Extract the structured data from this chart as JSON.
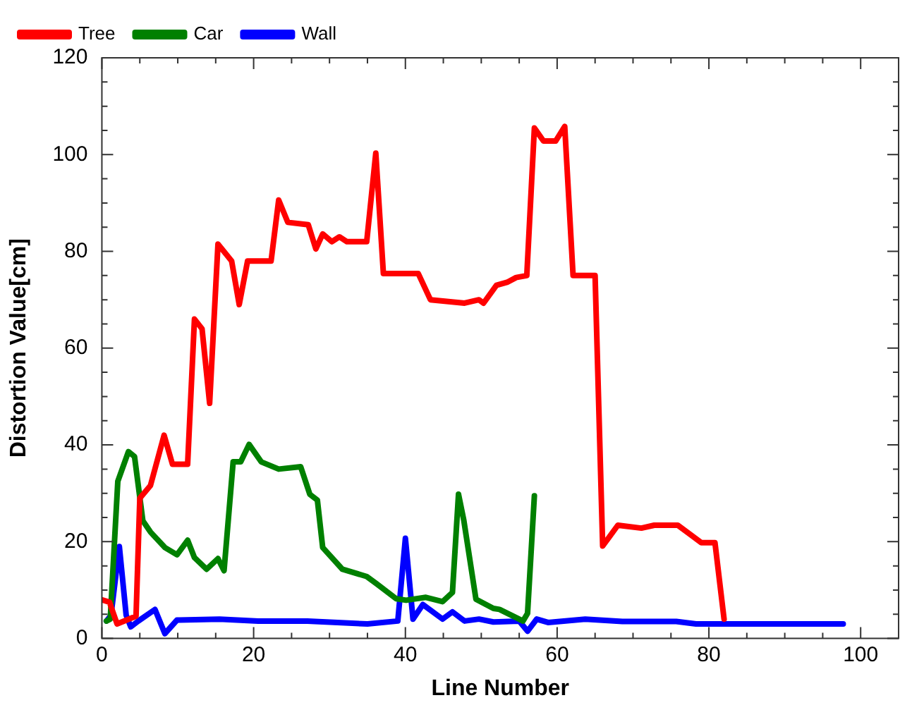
{
  "chart_data": {
    "type": "line",
    "xlabel": "Line Number",
    "ylabel": "Distortion Value[cm]",
    "xlim": [
      0,
      105
    ],
    "ylim": [
      0,
      120
    ],
    "xticks": [
      0,
      {
        "value": 5,
        "label": null
      },
      20,
      {
        "value": 10,
        "label": null
      },
      {
        "value": 15,
        "label": null
      },
      {
        "value": 25,
        "label": null
      },
      {
        "value": 30,
        "label": null
      },
      {
        "value": 35,
        "label": null
      },
      40,
      {
        "value": 45,
        "label": null
      },
      {
        "value": 50,
        "label": null
      },
      {
        "value": 55,
        "label": null
      },
      60,
      {
        "value": 65,
        "label": null
      },
      {
        "value": 70,
        "label": null
      },
      {
        "value": 75,
        "label": null
      },
      80,
      {
        "value": 85,
        "label": null
      },
      {
        "value": 90,
        "label": null
      },
      {
        "value": 95,
        "label": null
      },
      100
    ],
    "yticks": [
      0,
      {
        "value": 5,
        "label": null
      },
      {
        "value": 10,
        "label": null
      },
      {
        "value": 15,
        "label": null
      },
      20,
      {
        "value": 25,
        "label": null
      },
      {
        "value": 30,
        "label": null
      },
      {
        "value": 35,
        "label": null
      },
      40,
      {
        "value": 45,
        "label": null
      },
      {
        "value": 50,
        "label": null
      },
      {
        "value": 55,
        "label": null
      },
      60,
      {
        "value": 65,
        "label": null
      },
      {
        "value": 70,
        "label": null
      },
      {
        "value": 75,
        "label": null
      },
      80,
      {
        "value": 85,
        "label": null
      },
      {
        "value": 90,
        "label": null
      },
      {
        "value": 95,
        "label": null
      },
      100,
      {
        "value": 105,
        "label": null
      },
      {
        "value": 110,
        "label": null
      },
      {
        "value": 115,
        "label": null
      },
      120
    ],
    "grid": false,
    "legend": "top left",
    "marker": "none",
    "line_style": "solid",
    "series": [
      {
        "name": "Tree",
        "color": "#ff0000",
        "x": [
          0,
          1,
          2,
          4.5,
          5,
          6.4,
          8.2,
          9.3,
          11.3,
          12.2,
          13.2,
          14.2,
          15.3,
          17.1,
          18.1,
          19.2,
          22.3,
          23.3,
          24.5,
          27.2,
          28.2,
          29.1,
          30.3,
          31.3,
          32.3,
          34.9,
          36.1,
          37.1,
          41.7,
          43.3,
          47.8,
          49.7,
          50.3,
          52,
          53.4,
          54.6,
          56,
          57,
          58.2,
          59.8,
          61,
          62.1,
          65,
          66,
          68,
          71.1,
          72.8,
          75.9,
          79,
          80.8,
          82
        ],
        "values": [
          8,
          7.5,
          3,
          4.6,
          29,
          31.6,
          42,
          36,
          36,
          66,
          64,
          48.6,
          81.5,
          78,
          69,
          78,
          78,
          90.6,
          86,
          85.5,
          80.5,
          83.6,
          82,
          83,
          82,
          82,
          100.3,
          75.4,
          75.4,
          70,
          69.3,
          70,
          69.3,
          73,
          73.6,
          74.6,
          75,
          105.5,
          102.8,
          102.8,
          105.8,
          75,
          75,
          19.1,
          23.4,
          22.8,
          23.4,
          23.4,
          19.8,
          19.8,
          4
        ]
      },
      {
        "name": "Car",
        "color": "#008000",
        "x": [
          0.6,
          1.1,
          2.1,
          3.5,
          4.3,
          5.4,
          6.4,
          8.3,
          9.9,
          11.3,
          12.2,
          13.8,
          15.3,
          16.1,
          17.3,
          18.3,
          19.4,
          21,
          23.3,
          26.2,
          27.4,
          28.4,
          29.1,
          31.7,
          34.9,
          36.2,
          38.8,
          40.1,
          42.7,
          44.9,
          46.2,
          47,
          47.7,
          49.3,
          51.6,
          52.4,
          55.5,
          56.1,
          57
        ],
        "values": [
          3.6,
          4,
          32.5,
          38.6,
          37.6,
          24.3,
          22,
          18.8,
          17.3,
          20.3,
          16.7,
          14.3,
          16.5,
          14,
          36.5,
          36.5,
          40.1,
          36.5,
          35,
          35.5,
          29.8,
          28.6,
          18.8,
          14.3,
          12.8,
          11.3,
          8.2,
          7.9,
          8.5,
          7.6,
          9.5,
          29.8,
          24.4,
          8.1,
          6.2,
          6,
          3.6,
          5.2,
          29.5
        ]
      },
      {
        "name": "Wall",
        "color": "#0000ff",
        "x": [
          0.6,
          1.2,
          2.3,
          3.2,
          3.8,
          4.8,
          7,
          8.3,
          9.9,
          15.5,
          20.6,
          27.1,
          35,
          39,
          40,
          41,
          42.3,
          44.9,
          46.2,
          47.8,
          49.7,
          51.6,
          55,
          56.1,
          57.3,
          58.8,
          63.7,
          68.6,
          75.7,
          78.3,
          84.8,
          97.7
        ],
        "values": [
          3.6,
          4.8,
          19,
          4.8,
          2.4,
          3.6,
          6,
          1,
          3.8,
          4,
          3.6,
          3.6,
          3,
          3.6,
          20.7,
          4,
          7,
          4,
          5.5,
          3.6,
          4,
          3.4,
          3.6,
          1.5,
          4,
          3.3,
          4,
          3.5,
          3.5,
          3,
          3,
          3
        ]
      }
    ]
  }
}
